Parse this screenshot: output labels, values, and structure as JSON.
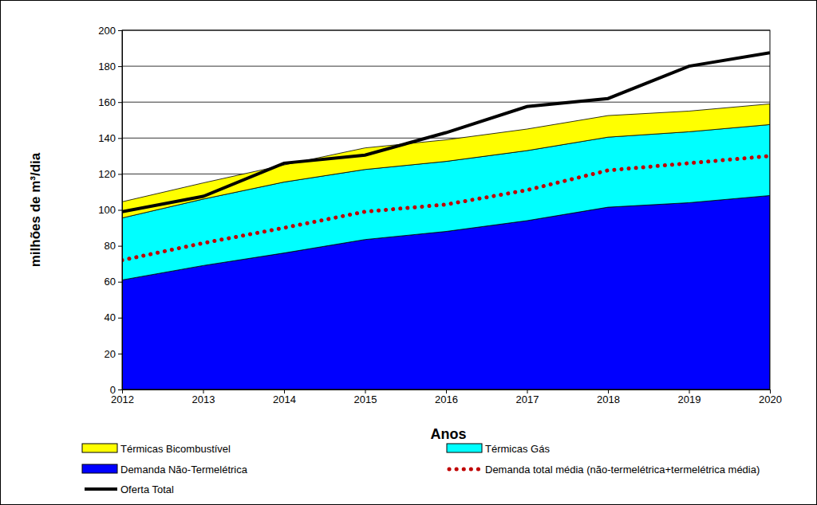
{
  "chart_data": {
    "type": "area",
    "stacked": true,
    "x_label": "Anos",
    "y_label": "milhões de m³/dia",
    "x": [
      2012,
      2013,
      2014,
      2015,
      2016,
      2017,
      2018,
      2019,
      2020
    ],
    "xlim": [
      2012,
      2020
    ],
    "xticks": [
      2012,
      2013,
      2014,
      2015,
      2016,
      2017,
      2018,
      2019,
      2020
    ],
    "ylim": [
      0,
      200
    ],
    "yticks": [
      0,
      20,
      40,
      60,
      80,
      100,
      120,
      140,
      160,
      180,
      200
    ],
    "grid": true,
    "legend": "bottom",
    "series": [
      {
        "name": "Térmicas Bicombustível",
        "type": "area",
        "color": "#ffff00",
        "values": [
          9,
          9,
          9.5,
          12,
          12,
          12,
          12,
          11.5,
          11.5
        ]
      },
      {
        "name": "Térmicas  Gás",
        "type": "area",
        "color": "#00ffff",
        "values": [
          34.5,
          37,
          39.5,
          39,
          39,
          39,
          39,
          39.5,
          39.5
        ]
      },
      {
        "name": "Demanda Não-Termelétrica",
        "type": "area",
        "color": "#0000ff",
        "values": [
          61,
          69,
          76,
          83.5,
          88,
          94,
          101.5,
          104,
          108
        ]
      },
      {
        "name": "Demanda total média (não-termelétrica+termelétrica média)",
        "type": "line",
        "line_style": "dotted",
        "color": "#c00000",
        "values": [
          72,
          81.5,
          90,
          99,
          103,
          111,
          122,
          126,
          130
        ]
      },
      {
        "name": "Oferta Total",
        "type": "line",
        "line_style": "solid",
        "color": "#000000",
        "values": [
          99,
          107.5,
          126,
          130.5,
          143,
          157.5,
          162,
          180,
          187.5
        ]
      }
    ]
  }
}
